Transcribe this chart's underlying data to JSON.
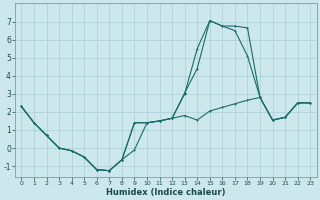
{
  "xlabel": "Humidex (Indice chaleur)",
  "background_color": "#cce8ec",
  "grid_color": "#aacdd4",
  "line_color": "#1a6b6b",
  "xlim": [
    -0.5,
    23.5
  ],
  "ylim": [
    -1.6,
    8.0
  ],
  "xticks": [
    0,
    1,
    2,
    3,
    4,
    5,
    6,
    7,
    8,
    9,
    10,
    11,
    12,
    13,
    14,
    15,
    16,
    17,
    18,
    19,
    20,
    21,
    22,
    23
  ],
  "yticks": [
    -1,
    0,
    1,
    2,
    3,
    4,
    5,
    6,
    7
  ],
  "series1_x": [
    0,
    1,
    2,
    3,
    4,
    5,
    6,
    7,
    8,
    9,
    10,
    11,
    12,
    13,
    14,
    15,
    16,
    17,
    18,
    19,
    20,
    21,
    22,
    23
  ],
  "series1_y": [
    2.3,
    1.4,
    0.7,
    0.0,
    -0.15,
    -0.5,
    -1.2,
    -1.25,
    -0.65,
    1.4,
    1.4,
    1.5,
    1.65,
    3.0,
    5.5,
    7.05,
    6.75,
    6.5,
    5.1,
    2.8,
    1.55,
    1.7,
    2.5,
    2.5
  ],
  "series2_x": [
    0,
    1,
    2,
    3,
    4,
    5,
    6,
    7,
    8,
    9,
    10,
    11,
    12,
    13,
    14,
    15,
    16,
    17,
    18,
    19,
    20,
    21,
    22,
    23
  ],
  "series2_y": [
    2.3,
    1.4,
    0.7,
    0.0,
    -0.15,
    -0.5,
    -1.2,
    -1.25,
    -0.65,
    -0.1,
    1.4,
    1.5,
    1.65,
    3.05,
    4.4,
    7.05,
    6.75,
    6.75,
    6.65,
    2.8,
    1.55,
    1.7,
    2.5,
    2.5
  ],
  "series3_x": [
    0,
    1,
    2,
    3,
    4,
    5,
    6,
    7,
    8,
    9,
    10,
    11,
    12,
    13,
    14,
    15,
    16,
    17,
    18,
    19,
    20,
    21,
    22,
    23
  ],
  "series3_y": [
    2.3,
    1.4,
    0.7,
    0.0,
    -0.15,
    -0.5,
    -1.2,
    -1.25,
    -0.65,
    1.4,
    1.4,
    1.5,
    1.65,
    1.8,
    1.55,
    2.05,
    2.25,
    2.45,
    2.65,
    2.8,
    1.55,
    1.7,
    2.5,
    2.5
  ]
}
